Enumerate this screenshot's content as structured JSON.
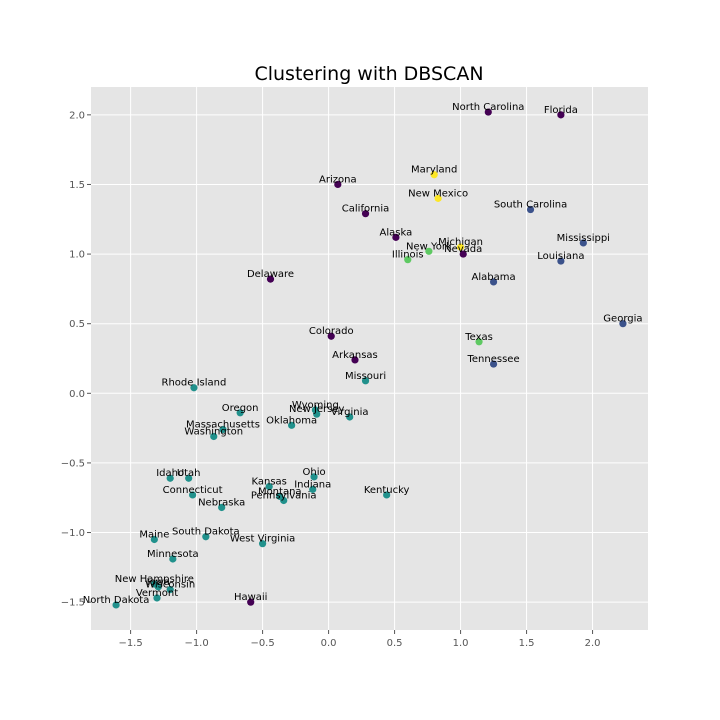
{
  "chart_data": {
    "type": "scatter",
    "title": "Clustering with DBSCAN",
    "xlabel": "",
    "ylabel": "",
    "xlim": [
      -1.8,
      2.42
    ],
    "ylim": [
      -1.7,
      2.2
    ],
    "xticks": [
      -1.5,
      -1.0,
      -0.5,
      0.0,
      0.5,
      1.0,
      1.5,
      2.0
    ],
    "yticks": [
      -1.5,
      -1.0,
      -0.5,
      0.0,
      0.5,
      1.0,
      1.5,
      2.0
    ],
    "grid": true,
    "legend": false,
    "colors": {
      "background": "#e5e5e5",
      "grid": "#ffffff",
      "cluster_-1": "#440154",
      "cluster_0": "#3b528b",
      "cluster_1": "#21918c",
      "cluster_2": "#5ec962",
      "cluster_3": "#fde725"
    },
    "points": [
      {
        "label": "North Carolina",
        "x": 1.21,
        "y": 2.02,
        "cluster": -1
      },
      {
        "label": "Florida",
        "x": 1.76,
        "y": 2.0,
        "cluster": -1
      },
      {
        "label": "Maryland",
        "x": 0.8,
        "y": 1.57,
        "cluster": 3
      },
      {
        "label": "Arizona",
        "x": 0.07,
        "y": 1.5,
        "cluster": -1
      },
      {
        "label": "New Mexico",
        "x": 0.83,
        "y": 1.4,
        "cluster": 3
      },
      {
        "label": "South Carolina",
        "x": 1.53,
        "y": 1.32,
        "cluster": 0
      },
      {
        "label": "California",
        "x": 0.28,
        "y": 1.29,
        "cluster": -1
      },
      {
        "label": "Alaska",
        "x": 0.51,
        "y": 1.12,
        "cluster": -1
      },
      {
        "label": "Mississippi",
        "x": 1.93,
        "y": 1.08,
        "cluster": 0
      },
      {
        "label": "New York",
        "x": 0.76,
        "y": 1.02,
        "cluster": 2
      },
      {
        "label": "Michigan",
        "x": 1.0,
        "y": 1.05,
        "cluster": 3
      },
      {
        "label": "Nevada",
        "x": 1.02,
        "y": 1.0,
        "cluster": -1
      },
      {
        "label": "Illinois",
        "x": 0.6,
        "y": 0.96,
        "cluster": 2
      },
      {
        "label": "Louisiana",
        "x": 1.76,
        "y": 0.95,
        "cluster": 0
      },
      {
        "label": "Delaware",
        "x": -0.44,
        "y": 0.82,
        "cluster": -1
      },
      {
        "label": "Alabama",
        "x": 1.25,
        "y": 0.8,
        "cluster": 0
      },
      {
        "label": "Georgia",
        "x": 2.23,
        "y": 0.5,
        "cluster": 0
      },
      {
        "label": "Colorado",
        "x": 0.02,
        "y": 0.41,
        "cluster": -1
      },
      {
        "label": "Texas",
        "x": 1.14,
        "y": 0.37,
        "cluster": 2
      },
      {
        "label": "Arkansas",
        "x": 0.2,
        "y": 0.24,
        "cluster": -1
      },
      {
        "label": "Tennessee",
        "x": 1.25,
        "y": 0.21,
        "cluster": 0
      },
      {
        "label": "Missouri",
        "x": 0.28,
        "y": 0.09,
        "cluster": 1
      },
      {
        "label": "Rhode Island",
        "x": -1.02,
        "y": 0.04,
        "cluster": 1
      },
      {
        "label": "Wyoming",
        "x": -0.1,
        "y": -0.12,
        "cluster": 1
      },
      {
        "label": "Oregon",
        "x": -0.67,
        "y": -0.14,
        "cluster": 1
      },
      {
        "label": "New Jersey",
        "x": -0.09,
        "y": -0.15,
        "cluster": 1
      },
      {
        "label": "Virginia",
        "x": 0.16,
        "y": -0.17,
        "cluster": 1
      },
      {
        "label": "Oklahoma",
        "x": -0.28,
        "y": -0.23,
        "cluster": 1
      },
      {
        "label": "Massachusetts",
        "x": -0.8,
        "y": -0.26,
        "cluster": 1
      },
      {
        "label": "Washington",
        "x": -0.87,
        "y": -0.31,
        "cluster": 1
      },
      {
        "label": "Idaho",
        "x": -1.2,
        "y": -0.61,
        "cluster": 1
      },
      {
        "label": "Utah",
        "x": -1.06,
        "y": -0.61,
        "cluster": 1
      },
      {
        "label": "Ohio",
        "x": -0.11,
        "y": -0.6,
        "cluster": 1
      },
      {
        "label": "Kansas",
        "x": -0.45,
        "y": -0.67,
        "cluster": 1
      },
      {
        "label": "Indiana",
        "x": -0.12,
        "y": -0.69,
        "cluster": 1
      },
      {
        "label": "Connecticut",
        "x": -1.03,
        "y": -0.73,
        "cluster": 1
      },
      {
        "label": "Montana",
        "x": -0.37,
        "y": -0.74,
        "cluster": 1
      },
      {
        "label": "Kentucky",
        "x": 0.44,
        "y": -0.73,
        "cluster": 1
      },
      {
        "label": "Pennsylvania",
        "x": -0.34,
        "y": -0.77,
        "cluster": 1
      },
      {
        "label": "Nebraska",
        "x": -0.81,
        "y": -0.82,
        "cluster": 1
      },
      {
        "label": "South Dakota",
        "x": -0.93,
        "y": -1.03,
        "cluster": 1
      },
      {
        "label": "Maine",
        "x": -1.32,
        "y": -1.05,
        "cluster": 1
      },
      {
        "label": "West Virginia",
        "x": -0.5,
        "y": -1.08,
        "cluster": 1
      },
      {
        "label": "Minnesota",
        "x": -1.18,
        "y": -1.19,
        "cluster": 1
      },
      {
        "label": "New Hampshire",
        "x": -1.32,
        "y": -1.37,
        "cluster": 1
      },
      {
        "label": "Iowa",
        "x": -1.29,
        "y": -1.39,
        "cluster": 1
      },
      {
        "label": "Wisconsin",
        "x": -1.2,
        "y": -1.41,
        "cluster": 1
      },
      {
        "label": "Vermont",
        "x": -1.3,
        "y": -1.47,
        "cluster": 1
      },
      {
        "label": "Hawaii",
        "x": -0.59,
        "y": -1.5,
        "cluster": -1
      },
      {
        "label": "North Dakota",
        "x": -1.61,
        "y": -1.52,
        "cluster": 1
      }
    ]
  }
}
